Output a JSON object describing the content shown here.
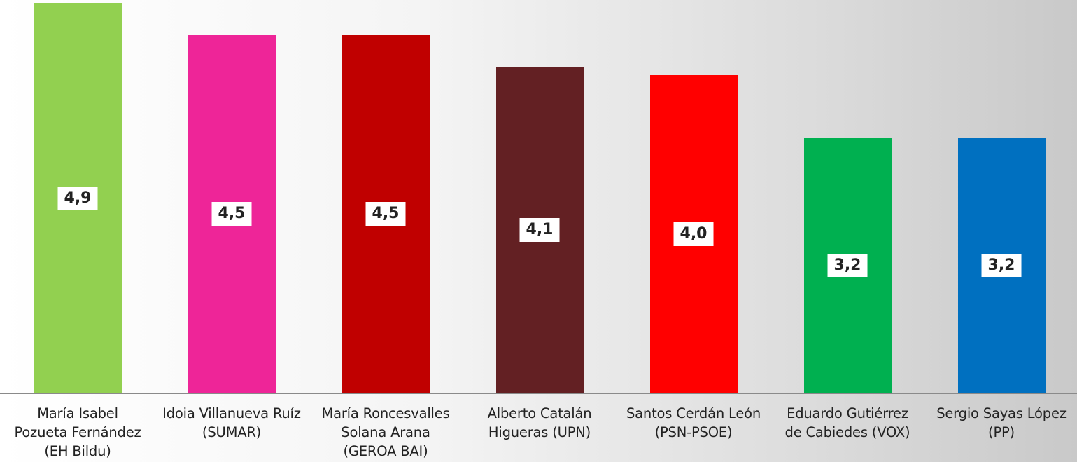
{
  "chart_data": {
    "type": "bar",
    "categories": [
      "María Isabel\nPozueta Fernández\n(EH Bildu)",
      "Idoia Villanueva Ruíz\n(SUMAR)",
      "María Roncesvalles\nSolana Arana\n(GEROA BAI)",
      "Alberto Catalán\nHigueras (UPN)",
      "Santos Cerdán León\n(PSN-PSOE)",
      "Eduardo Gutiérrez\nde Cabiedes (VOX)",
      "Sergio Sayas López\n(PP)"
    ],
    "values": [
      4.9,
      4.5,
      4.5,
      4.1,
      4.0,
      3.2,
      3.2
    ],
    "value_labels": [
      "4,9",
      "4,5",
      "4,5",
      "4,1",
      "4,0",
      "3,2",
      "3,2"
    ],
    "colors": [
      "#92d050",
      "#ee2598",
      "#c00000",
      "#632023",
      "#ff0000",
      "#00b050",
      "#0070c0"
    ],
    "ylim": [
      0,
      4.9
    ],
    "grid": false,
    "legend": "none"
  }
}
